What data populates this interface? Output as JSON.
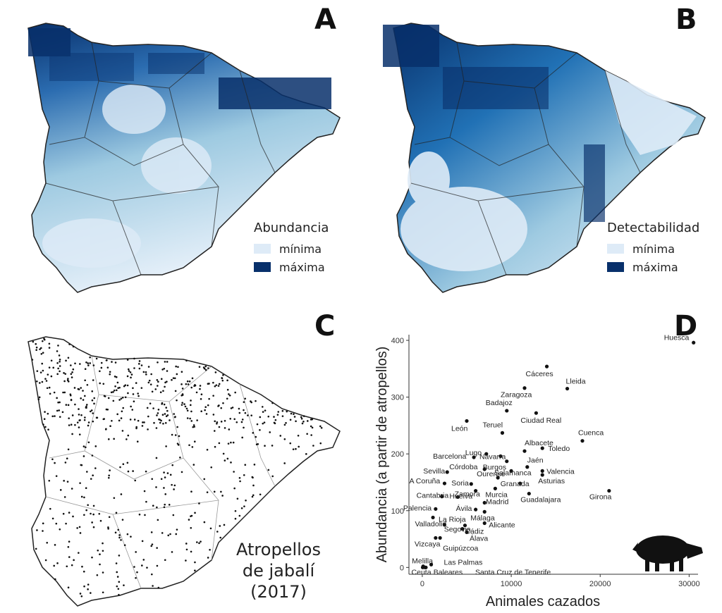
{
  "panels": {
    "a": {
      "letter": "A",
      "legend_title": "Abundancia",
      "legend_min": "mínima",
      "legend_max": "máxima"
    },
    "b": {
      "letter": "B",
      "legend_title": "Detectabilidad",
      "legend_min": "mínima",
      "legend_max": "máxima"
    },
    "c": {
      "letter": "C",
      "title_lines": [
        "Atropellos",
        "de jabalí",
        "(2017)"
      ]
    },
    "d": {
      "letter": "D",
      "silhouette": "wild-boar-silhouette"
    }
  },
  "colors": {
    "min": "#deebf7",
    "max": "#08306b",
    "mid": "#2171b5",
    "points": "#111111"
  },
  "chart_data": {
    "type": "scatter",
    "xlabel": "Animales cazados",
    "ylabel": "Abundancia (a partir de atropellos)",
    "xlim": [
      -1500,
      31000
    ],
    "ylim": [
      -12,
      410
    ],
    "x_ticks": [
      0,
      10000,
      20000,
      30000
    ],
    "y_ticks": [
      0,
      100,
      200,
      300,
      400
    ],
    "grid": false,
    "points": [
      {
        "label": "Huesca",
        "x": 30500,
        "y": 396
      },
      {
        "label": "Cáceres",
        "x": 14000,
        "y": 354
      },
      {
        "label": "Lleida",
        "x": 16300,
        "y": 315
      },
      {
        "label": "Zaragoza",
        "x": 11500,
        "y": 316
      },
      {
        "label": "Badajoz",
        "x": 9500,
        "y": 276
      },
      {
        "label": "Ciudad Real",
        "x": 12800,
        "y": 272
      },
      {
        "label": "León",
        "x": 5000,
        "y": 258
      },
      {
        "label": "Teruel",
        "x": 9000,
        "y": 237
      },
      {
        "label": "Cuenca",
        "x": 18000,
        "y": 223
      },
      {
        "label": "Albacete",
        "x": 11500,
        "y": 205
      },
      {
        "label": "Toledo",
        "x": 13500,
        "y": 210
      },
      {
        "label": "Lugo",
        "x": 7200,
        "y": 200
      },
      {
        "label": "Navarra",
        "x": 8800,
        "y": 196
      },
      {
        "label": "Barcelona",
        "x": 5800,
        "y": 194
      },
      {
        "label": "Burgos",
        "x": 9500,
        "y": 187
      },
      {
        "label": "Jaén",
        "x": 11800,
        "y": 177
      },
      {
        "label": "Córdoba",
        "x": 7000,
        "y": 173
      },
      {
        "label": "Sevilla",
        "x": 2800,
        "y": 168
      },
      {
        "label": "Salamanca",
        "x": 10000,
        "y": 170
      },
      {
        "label": "Valencia",
        "x": 13500,
        "y": 170
      },
      {
        "label": "Ourense",
        "x": 8500,
        "y": 158
      },
      {
        "label": "Asturias",
        "x": 13500,
        "y": 163
      },
      {
        "label": "Soria",
        "x": 5500,
        "y": 147
      },
      {
        "label": "A Coruña",
        "x": 2500,
        "y": 148
      },
      {
        "label": "Granada",
        "x": 11000,
        "y": 148
      },
      {
        "label": "Murcia",
        "x": 8200,
        "y": 139
      },
      {
        "label": "Zamora",
        "x": 6000,
        "y": 135
      },
      {
        "label": "Guadalajara",
        "x": 12000,
        "y": 130
      },
      {
        "label": "Girona",
        "x": 21000,
        "y": 135
      },
      {
        "label": "Cantabria",
        "x": 2200,
        "y": 125
      },
      {
        "label": "Huelva",
        "x": 4000,
        "y": 124
      },
      {
        "label": "Madrid",
        "x": 7000,
        "y": 114
      },
      {
        "label": "Palencia",
        "x": 1500,
        "y": 103
      },
      {
        "label": "Ávila",
        "x": 6000,
        "y": 102
      },
      {
        "label": "Málaga",
        "x": 7000,
        "y": 98
      },
      {
        "label": "La Rioja",
        "x": 1200,
        "y": 88
      },
      {
        "label": "Valladolid",
        "x": 2500,
        "y": 75
      },
      {
        "label": "Segovia",
        "x": 4500,
        "y": 68
      },
      {
        "label": "Cádiz",
        "x": 4800,
        "y": 74
      },
      {
        "label": "Alicante",
        "x": 7000,
        "y": 78
      },
      {
        "label": "Álava",
        "x": 5000,
        "y": 62
      },
      {
        "label": "Vizcaya",
        "x": 1500,
        "y": 52
      },
      {
        "label": "Guipúzcoa",
        "x": 2000,
        "y": 52
      },
      {
        "label": "Las Palmas",
        "x": 1000,
        "y": 5
      },
      {
        "label": "Melilla",
        "x": 100,
        "y": 2
      },
      {
        "label": "Ceuta",
        "x": 50,
        "y": 0
      },
      {
        "label": "Baleares",
        "x": 300,
        "y": 0
      },
      {
        "label": "Santa Cruz de Tenerife",
        "x": 400,
        "y": 0
      }
    ]
  }
}
